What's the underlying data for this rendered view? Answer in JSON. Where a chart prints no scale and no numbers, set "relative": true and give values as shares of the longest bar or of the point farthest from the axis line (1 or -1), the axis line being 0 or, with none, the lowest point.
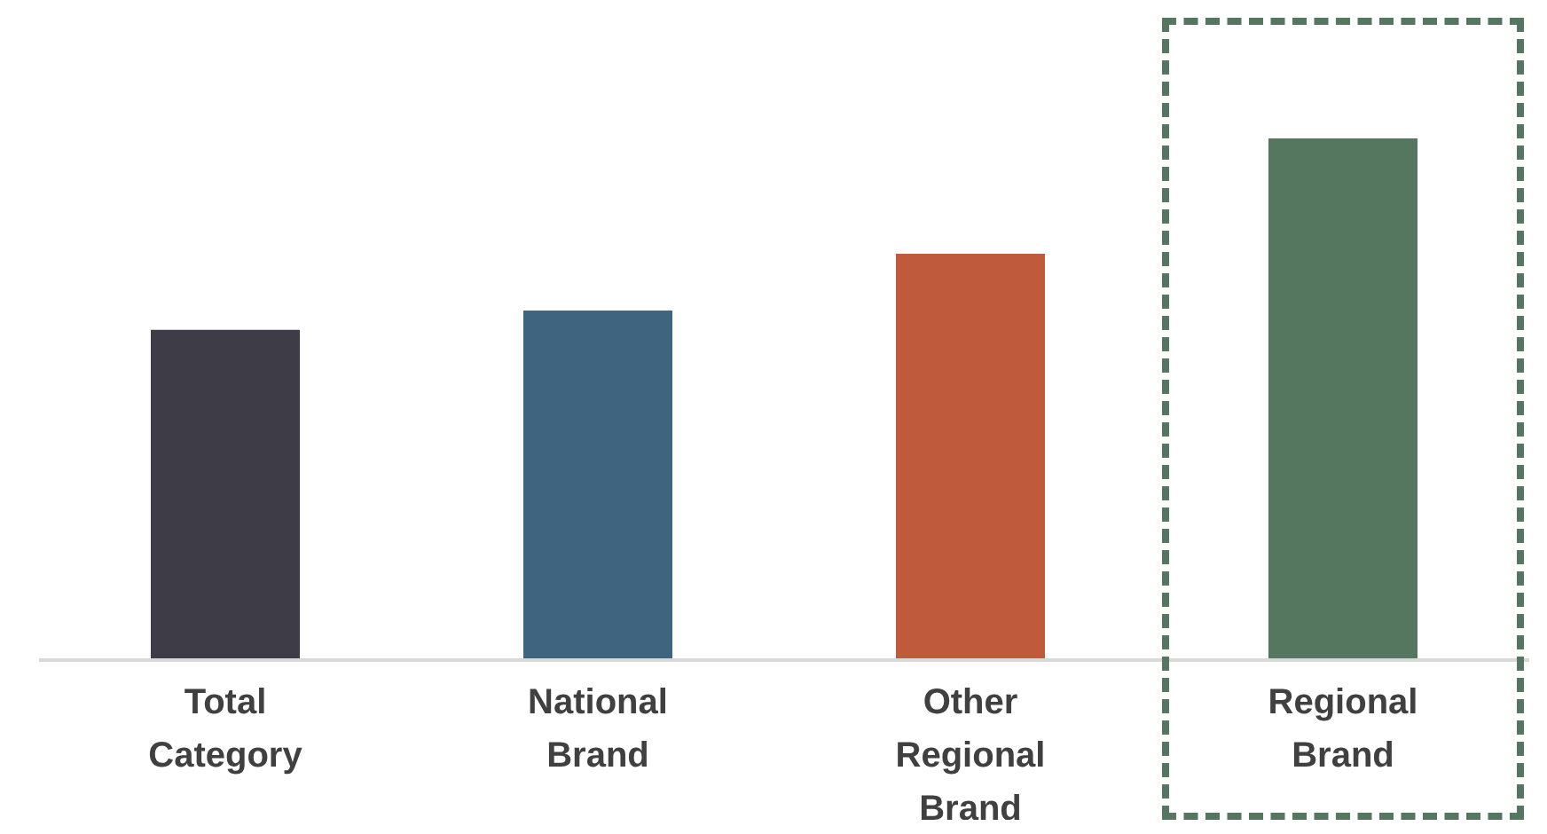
{
  "chart_data": {
    "type": "bar",
    "relative": true,
    "categories": [
      "Total Category",
      "National Brand",
      "Other Regional Brand",
      "Regional Brand"
    ],
    "values": [
      0.633,
      0.67,
      0.779,
      1
    ],
    "colors": [
      "#3d3c47",
      "#3f6480",
      "#bf5b3c",
      "#56775f"
    ]
  }
}
